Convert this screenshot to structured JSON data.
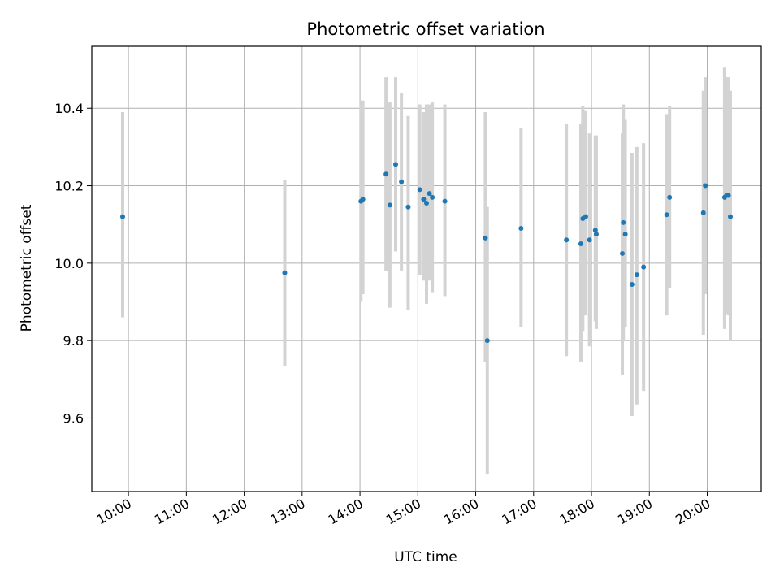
{
  "chart_data": {
    "type": "scatter",
    "title": "Photometric offset variation",
    "xlabel": "UTC time",
    "ylabel": "Photometric offset",
    "x_unit": "time of day (UTC)",
    "xlim": [
      "09:22",
      "20:56"
    ],
    "ylim": [
      9.41,
      10.56
    ],
    "x_ticks": [
      "10:00",
      "11:00",
      "12:00",
      "13:00",
      "14:00",
      "15:00",
      "16:00",
      "17:00",
      "18:00",
      "19:00",
      "20:00"
    ],
    "y_ticks": [
      9.6,
      9.8,
      10.0,
      10.2,
      10.4
    ],
    "y_tick_labels": [
      "9.6",
      "9.8",
      "10.0",
      "10.2",
      "10.4"
    ],
    "grid": true,
    "legend": "none",
    "point_color": "#1f77b4",
    "errorbar_color": "#d3d3d3",
    "series": [
      {
        "points": [
          {
            "x": "09:54",
            "y": 10.12,
            "low": 9.86,
            "high": 10.39
          },
          {
            "x": "12:42",
            "y": 9.975,
            "low": 9.735,
            "high": 10.215
          },
          {
            "x": "14:01",
            "y": 10.16,
            "low": 9.9,
            "high": 10.42
          },
          {
            "x": "14:03",
            "y": 10.165,
            "low": 9.92,
            "high": 10.42
          },
          {
            "x": "14:27",
            "y": 10.23,
            "low": 9.98,
            "high": 10.48
          },
          {
            "x": "14:31",
            "y": 10.15,
            "low": 9.885,
            "high": 10.415
          },
          {
            "x": "14:37",
            "y": 10.255,
            "low": 10.03,
            "high": 10.48
          },
          {
            "x": "14:43",
            "y": 10.21,
            "low": 9.98,
            "high": 10.44
          },
          {
            "x": "14:50",
            "y": 10.145,
            "low": 9.88,
            "high": 10.38
          },
          {
            "x": "15:02",
            "y": 10.19,
            "low": 9.97,
            "high": 10.41
          },
          {
            "x": "15:06",
            "y": 10.165,
            "low": 9.955,
            "high": 10.39
          },
          {
            "x": "15:09",
            "y": 10.155,
            "low": 9.895,
            "high": 10.41
          },
          {
            "x": "15:12",
            "y": 10.18,
            "low": 9.955,
            "high": 10.41
          },
          {
            "x": "15:15",
            "y": 10.17,
            "low": 9.925,
            "high": 10.415
          },
          {
            "x": "15:28",
            "y": 10.16,
            "low": 9.915,
            "high": 10.41
          },
          {
            "x": "16:10",
            "y": 10.065,
            "low": 9.745,
            "high": 10.39
          },
          {
            "x": "16:12",
            "y": 9.8,
            "low": 9.455,
            "high": 10.145
          },
          {
            "x": "16:47",
            "y": 10.09,
            "low": 9.835,
            "high": 10.35
          },
          {
            "x": "17:34",
            "y": 10.06,
            "low": 9.76,
            "high": 10.36
          },
          {
            "x": "17:49",
            "y": 10.05,
            "low": 9.745,
            "high": 10.36
          },
          {
            "x": "17:51",
            "y": 10.115,
            "low": 9.825,
            "high": 10.405
          },
          {
            "x": "17:54",
            "y": 10.12,
            "low": 9.865,
            "high": 10.395
          },
          {
            "x": "17:58",
            "y": 10.06,
            "low": 9.785,
            "high": 10.335
          },
          {
            "x": "18:04",
            "y": 10.085,
            "low": 9.85,
            "high": 10.33
          },
          {
            "x": "18:05",
            "y": 10.075,
            "low": 9.83,
            "high": 10.33
          },
          {
            "x": "18:32",
            "y": 10.025,
            "low": 9.71,
            "high": 10.335
          },
          {
            "x": "18:33",
            "y": 10.105,
            "low": 9.8,
            "high": 10.41
          },
          {
            "x": "18:35",
            "y": 10.075,
            "low": 9.835,
            "high": 10.37
          },
          {
            "x": "18:42",
            "y": 9.945,
            "low": 9.605,
            "high": 10.285
          },
          {
            "x": "18:47",
            "y": 9.97,
            "low": 9.635,
            "high": 10.3
          },
          {
            "x": "18:54",
            "y": 9.99,
            "low": 9.67,
            "high": 10.31
          },
          {
            "x": "19:18",
            "y": 10.125,
            "low": 9.865,
            "high": 10.385
          },
          {
            "x": "19:21",
            "y": 10.17,
            "low": 9.935,
            "high": 10.405
          },
          {
            "x": "19:56",
            "y": 10.13,
            "low": 9.815,
            "high": 10.445
          },
          {
            "x": "19:58",
            "y": 10.2,
            "low": 9.92,
            "high": 10.48
          },
          {
            "x": "20:18",
            "y": 10.17,
            "low": 9.83,
            "high": 10.505
          },
          {
            "x": "20:20",
            "y": 10.175,
            "low": 9.87,
            "high": 10.48
          },
          {
            "x": "20:22",
            "y": 10.175,
            "low": 9.865,
            "high": 10.48
          },
          {
            "x": "20:24",
            "y": 10.12,
            "low": 9.8,
            "high": 10.445
          }
        ]
      }
    ]
  }
}
